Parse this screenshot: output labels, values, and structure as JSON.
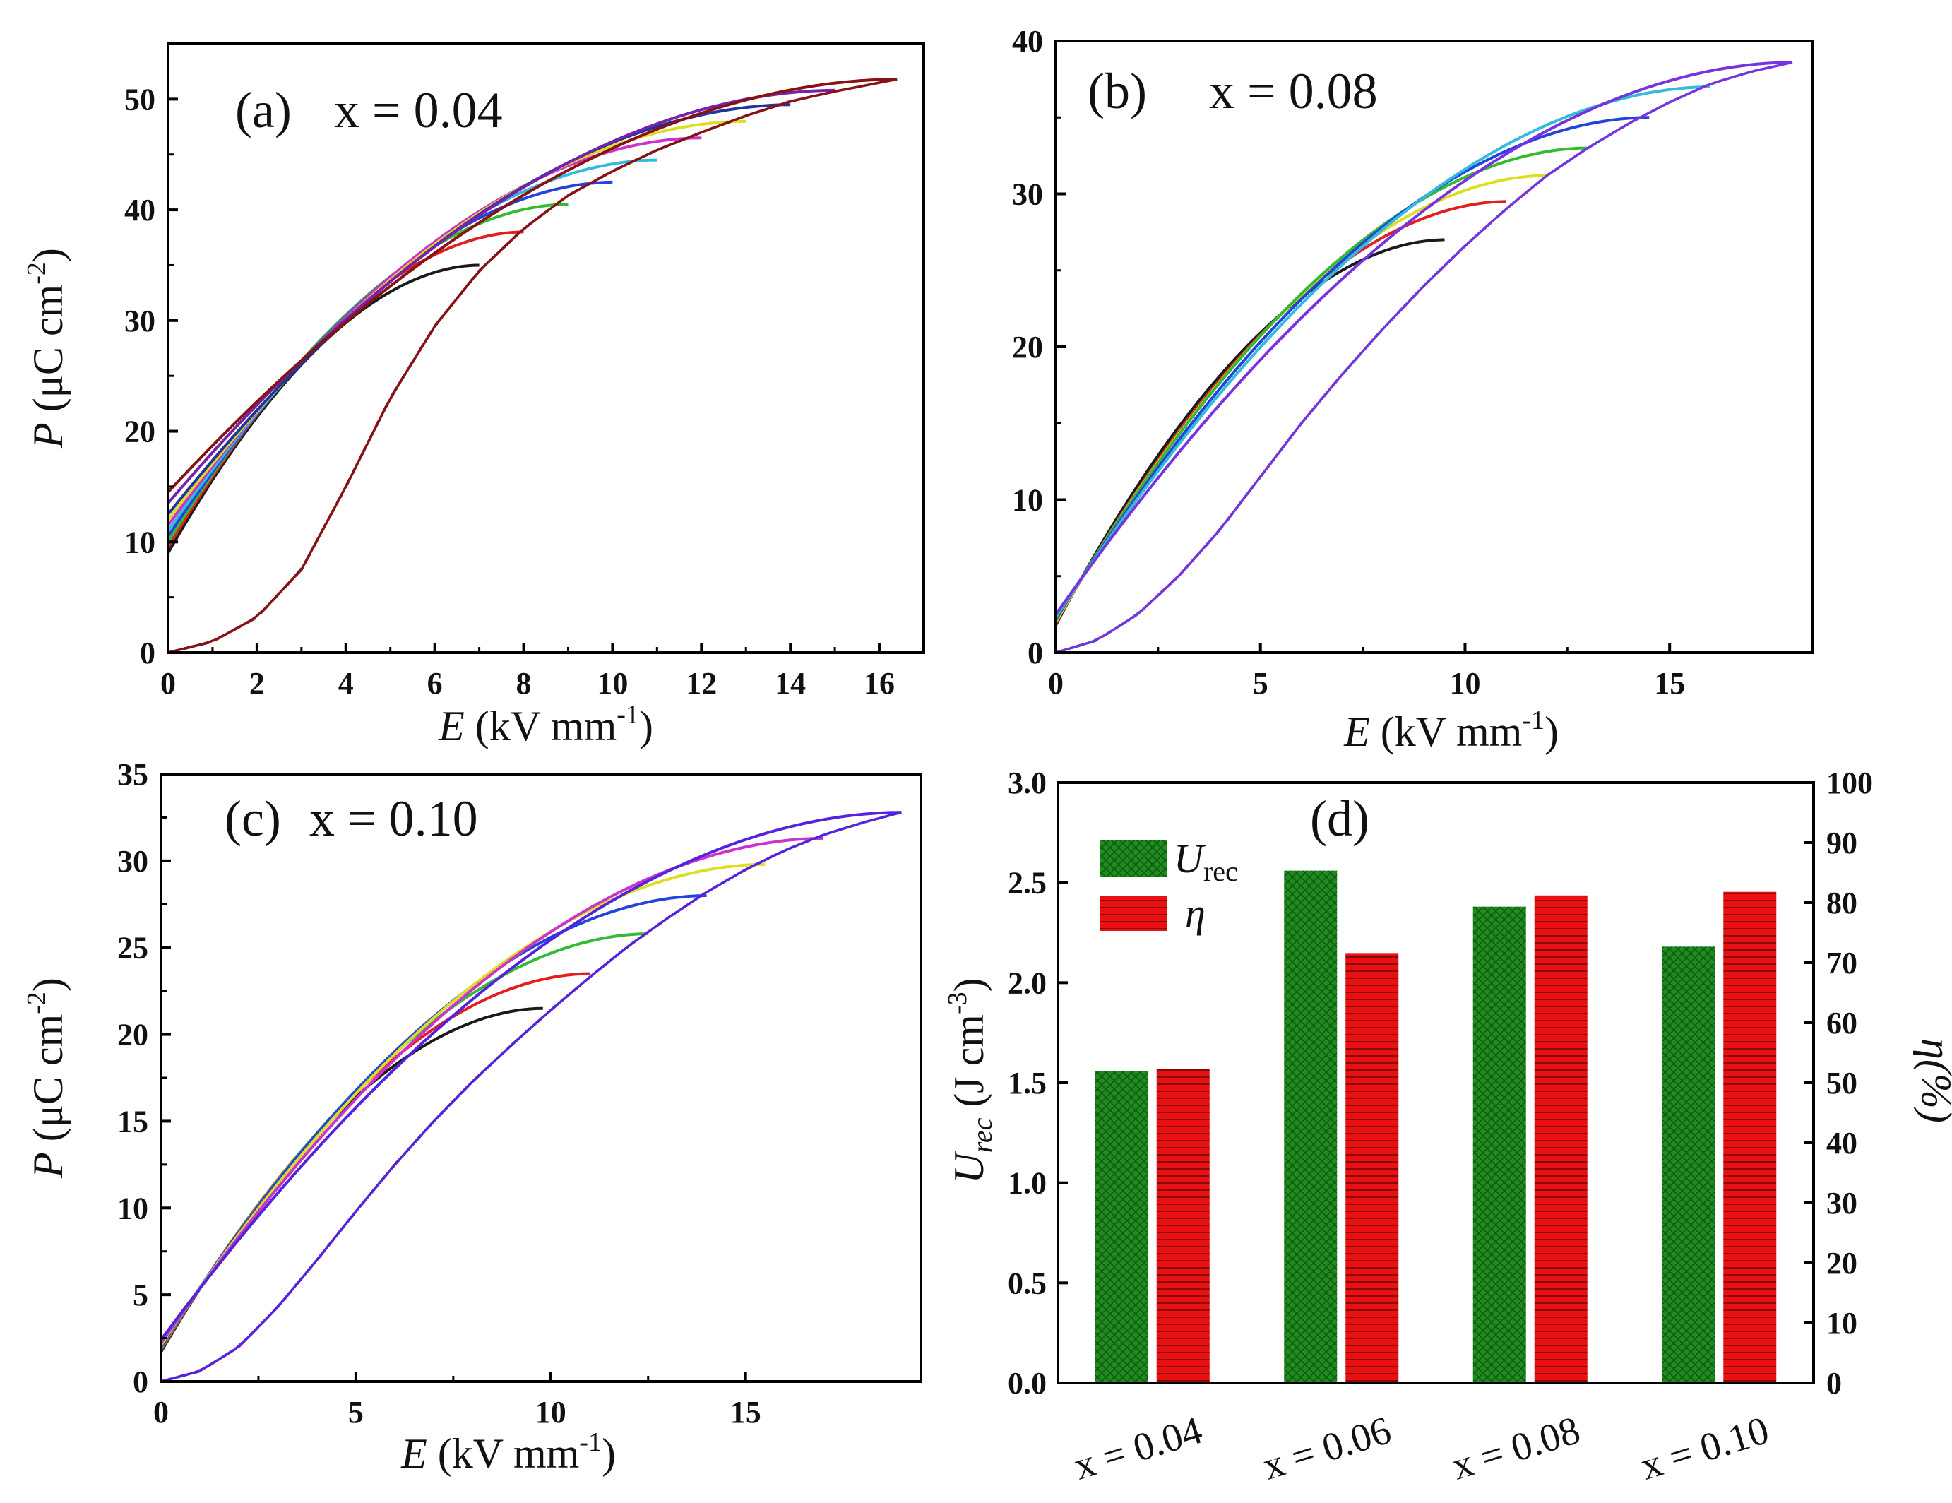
{
  "figure": {
    "panels": [
      "a",
      "b",
      "c",
      "d"
    ]
  },
  "chart_data": [
    {
      "id": "a",
      "type": "line",
      "title": "x = 0.04",
      "label": "(a)",
      "xlabel_var": "E",
      "xlabel_unit_pre": " (kV mm",
      "xlabel_unit_sup": "-1",
      "xlabel_unit_post": ")",
      "ylabel_var": "P",
      "ylabel_unit_pre": " (μC cm",
      "ylabel_unit_sup": "-2",
      "ylabel_unit_post": ")",
      "xlim": [
        0,
        17
      ],
      "ylim": [
        0,
        55
      ],
      "xticks": [
        0,
        2,
        4,
        6,
        8,
        10,
        12,
        14,
        16
      ],
      "yticks": [
        0,
        10,
        20,
        30,
        40,
        50
      ],
      "ascending_branch": [
        [
          0,
          0
        ],
        [
          1,
          1
        ],
        [
          2,
          3.2
        ],
        [
          3,
          7.5
        ],
        [
          4,
          15
        ],
        [
          5,
          23
        ],
        [
          6,
          29.5
        ],
        [
          7,
          34.5
        ],
        [
          8,
          38.3
        ],
        [
          9,
          41.3
        ],
        [
          10,
          43.5
        ],
        [
          11,
          45.4
        ],
        [
          12,
          47
        ],
        [
          13,
          48.5
        ],
        [
          14,
          49.8
        ],
        [
          15,
          50.7
        ],
        [
          16.4,
          51.8
        ]
      ],
      "loops": [
        {
          "emax": 7.0,
          "pmax": 35.0,
          "pr": 9.0,
          "color": "#1a1a1a"
        },
        {
          "emax": 8.0,
          "pmax": 38.0,
          "pr": 9.5,
          "color": "#e02020"
        },
        {
          "emax": 9.0,
          "pmax": 40.5,
          "pr": 10.0,
          "color": "#33bb33"
        },
        {
          "emax": 10.0,
          "pmax": 42.5,
          "pr": 10.5,
          "color": "#2244dd"
        },
        {
          "emax": 11.0,
          "pmax": 44.5,
          "pr": 11.0,
          "color": "#33bbdd"
        },
        {
          "emax": 12.0,
          "pmax": 46.5,
          "pr": 11.5,
          "color": "#cc33cc"
        },
        {
          "emax": 13.0,
          "pmax": 48.0,
          "pr": 12.0,
          "color": "#dddd22"
        },
        {
          "emax": 14.0,
          "pmax": 49.5,
          "pr": 12.5,
          "color": "#223399"
        },
        {
          "emax": 15.0,
          "pmax": 50.8,
          "pr": 13.5,
          "color": "#7722aa"
        },
        {
          "emax": 16.4,
          "pmax": 51.8,
          "pr": 14.5,
          "color": "#881111"
        }
      ]
    },
    {
      "id": "b",
      "type": "line",
      "title": "x = 0.08",
      "label": "(b)",
      "xlabel_var": "E",
      "xlabel_unit_pre": " (kV mm",
      "xlabel_unit_sup": "-1",
      "xlabel_unit_post": ")",
      "xlim": [
        0,
        18.5
      ],
      "ylim": [
        0,
        40
      ],
      "xticks": [
        0,
        5,
        10,
        15
      ],
      "yticks": [
        0,
        10,
        20,
        30,
        40
      ],
      "ascending_branch": [
        [
          0,
          0
        ],
        [
          1,
          0.8
        ],
        [
          2,
          2.5
        ],
        [
          3,
          5
        ],
        [
          4,
          8
        ],
        [
          5,
          11.5
        ],
        [
          6,
          15
        ],
        [
          7,
          18.2
        ],
        [
          8,
          21.2
        ],
        [
          9,
          24
        ],
        [
          10,
          26.6
        ],
        [
          11,
          29
        ],
        [
          12,
          31.2
        ],
        [
          13,
          33
        ],
        [
          14,
          34.6
        ],
        [
          15,
          36
        ],
        [
          16,
          37.2
        ],
        [
          17,
          38
        ],
        [
          18,
          38.6
        ]
      ],
      "loops": [
        {
          "emax": 9.5,
          "pmax": 27.0,
          "pr": 1.8,
          "color": "#1a1a1a"
        },
        {
          "emax": 11.0,
          "pmax": 29.5,
          "pr": 1.9,
          "color": "#e02020"
        },
        {
          "emax": 12.0,
          "pmax": 31.2,
          "pr": 2.0,
          "color": "#dddd22"
        },
        {
          "emax": 13.0,
          "pmax": 33.0,
          "pr": 2.1,
          "color": "#33bb33"
        },
        {
          "emax": 14.5,
          "pmax": 35.0,
          "pr": 2.2,
          "color": "#2244dd"
        },
        {
          "emax": 16.0,
          "pmax": 37.0,
          "pr": 2.3,
          "color": "#33bbdd"
        },
        {
          "emax": 18.0,
          "pmax": 38.6,
          "pr": 2.5,
          "color": "#7733dd"
        }
      ]
    },
    {
      "id": "c",
      "type": "line",
      "title": "x = 0.10",
      "label": "(c)",
      "xlabel_var": "E",
      "xlabel_unit_pre": " (kV mm",
      "xlabel_unit_sup": "-1",
      "xlabel_unit_post": ")",
      "ylabel_var": "P",
      "ylabel_unit_pre": " (μC cm",
      "ylabel_unit_sup": "-2",
      "ylabel_unit_post": ")",
      "xlim": [
        0,
        19.5
      ],
      "ylim": [
        0,
        35
      ],
      "xticks": [
        0,
        5,
        10,
        15
      ],
      "yticks": [
        0,
        5,
        10,
        15,
        20,
        25,
        30,
        35
      ],
      "ascending_branch": [
        [
          0,
          0
        ],
        [
          1,
          0.6
        ],
        [
          2,
          2
        ],
        [
          3,
          4.3
        ],
        [
          4,
          7
        ],
        [
          5,
          9.8
        ],
        [
          6,
          12.5
        ],
        [
          7,
          15
        ],
        [
          8,
          17.3
        ],
        [
          9,
          19.4
        ],
        [
          10,
          21.4
        ],
        [
          11,
          23.3
        ],
        [
          12,
          25.1
        ],
        [
          13,
          26.7
        ],
        [
          14,
          28.2
        ],
        [
          15,
          29.5
        ],
        [
          16,
          30.6
        ],
        [
          17,
          31.5
        ],
        [
          18,
          32.2
        ],
        [
          19,
          32.8
        ]
      ],
      "loops": [
        {
          "emax": 9.8,
          "pmax": 21.5,
          "pr": 1.7,
          "color": "#1a1a1a"
        },
        {
          "emax": 11.0,
          "pmax": 23.5,
          "pr": 1.8,
          "color": "#e02020"
        },
        {
          "emax": 12.5,
          "pmax": 25.8,
          "pr": 1.9,
          "color": "#33bb33"
        },
        {
          "emax": 14.0,
          "pmax": 28.0,
          "pr": 2.0,
          "color": "#2244dd"
        },
        {
          "emax": 15.5,
          "pmax": 29.8,
          "pr": 2.1,
          "color": "#dddd22"
        },
        {
          "emax": 17.0,
          "pmax": 31.3,
          "pr": 2.2,
          "color": "#cc33cc"
        },
        {
          "emax": 19.0,
          "pmax": 32.8,
          "pr": 2.4,
          "color": "#5522dd"
        }
      ]
    },
    {
      "id": "d",
      "type": "bar",
      "label": "(d)",
      "categories": [
        "x = 0.04",
        "x = 0.06",
        "x = 0.08",
        "x = 0.10"
      ],
      "series": [
        {
          "name": "U",
          "name_sub": "rec",
          "axis": "left",
          "color": "#1e8c1e",
          "values": [
            1.56,
            2.56,
            2.38,
            2.18
          ]
        },
        {
          "name": "η",
          "name_sub": "",
          "axis": "right",
          "color": "#e81010",
          "values": [
            52.3,
            71.6,
            81.2,
            81.8
          ]
        }
      ],
      "ylabel_left_var": "U",
      "ylabel_left_sub": "rec",
      "ylabel_left_unit_pre": " (J cm",
      "ylabel_left_unit_sup": "-3",
      "ylabel_left_unit_post": ")",
      "ylabel_right": "η(%)",
      "ylim_left": [
        0,
        3.0
      ],
      "ylim_right": [
        0,
        100
      ],
      "yticks_left": [
        "0.0",
        "0.5",
        "1.0",
        "1.5",
        "2.0",
        "2.5",
        "3.0"
      ],
      "yticks_right": [
        "0",
        "10",
        "20",
        "30",
        "40",
        "50",
        "60",
        "70",
        "80",
        "90",
        "100"
      ],
      "legend_position": "top-left"
    }
  ]
}
